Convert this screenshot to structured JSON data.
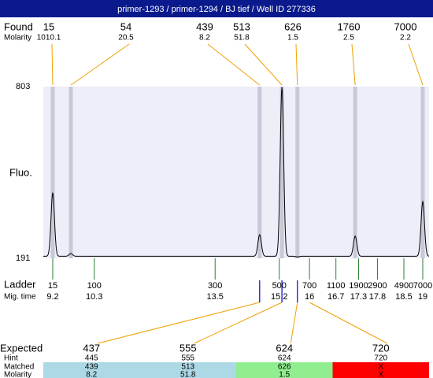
{
  "header": {
    "title": "primer-1293 / primer-1294 / BJ tief / Well ID 277336"
  },
  "found": {
    "label": "Found",
    "molarity_label": "Molarity",
    "peaks": [
      {
        "size": 15,
        "molarity": 1010.1,
        "time": 9.2,
        "height": 424
      },
      {
        "size": 54,
        "molarity": 20.5,
        "time": 9.68,
        "height": 208
      },
      {
        "size": 439,
        "molarity": 8.2,
        "time": 14.68,
        "height": 275
      },
      {
        "size": 513,
        "molarity": 51.8,
        "time": 15.27,
        "height": 800
      },
      {
        "size": 626,
        "molarity": 1.5,
        "time": 15.68,
        "height": 196
      },
      {
        "size": 1760,
        "molarity": 2.5,
        "time": 17.21,
        "height": 270
      },
      {
        "size": 7000,
        "molarity": 2.2,
        "time": 19,
        "height": 393
      }
    ]
  },
  "fluorescence": {
    "label": "Fluo.",
    "ylim": [
      191,
      803
    ]
  },
  "ladder": {
    "label": "Ladder",
    "time_label": "Mig. time",
    "sizes": [
      15,
      100,
      300,
      500,
      700,
      1100,
      1900,
      2900,
      4900,
      7000
    ],
    "times": [
      9.2,
      10.3,
      13.5,
      15.2,
      16,
      16.7,
      17.3,
      17.8,
      18.5,
      19
    ]
  },
  "expected": {
    "label": "Expected",
    "hint_label": "Hint",
    "matched_label": "Matched",
    "molarity_label": "Molarity",
    "values": [
      437,
      555,
      624,
      720
    ],
    "hints": [
      445,
      555,
      624,
      720
    ],
    "matched": [
      439,
      513,
      626,
      "X"
    ],
    "molarity": [
      8.2,
      51.8,
      1.5,
      "X"
    ],
    "colors": [
      "#add8e6",
      "#add8e6",
      "#90ee90",
      "#ff0000"
    ]
  }
}
